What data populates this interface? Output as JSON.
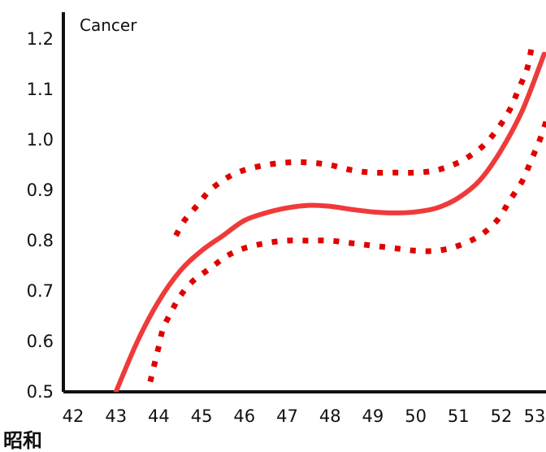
{
  "chart_data": {
    "type": "line",
    "title": "Cancer",
    "xlabel": "昭和",
    "ylabel": "",
    "xlim": [
      42,
      53
    ],
    "ylim": [
      0.5,
      1.25
    ],
    "x_ticks": [
      "42",
      "43",
      "44",
      "45",
      "46",
      "47",
      "48",
      "49",
      "50",
      "51",
      "52",
      "53"
    ],
    "y_ticks": [
      "0.5",
      "0.6",
      "0.7",
      "0.8",
      "0.9",
      "1.0",
      "1.1",
      "1.2"
    ],
    "grid": false,
    "colors": {
      "line": "#ef3a3a",
      "band": "#e00000",
      "axis": "#111111"
    },
    "series": [
      {
        "style": "solid",
        "x": [
          43.0,
          43.5,
          44.0,
          44.5,
          45.0,
          45.5,
          46.0,
          46.5,
          47.0,
          47.5,
          48.0,
          48.5,
          49.0,
          49.5,
          50.0,
          50.5,
          51.0,
          51.5,
          52.0,
          52.5,
          53.0
        ],
        "y": [
          0.5,
          0.6,
          0.68,
          0.74,
          0.78,
          0.81,
          0.84,
          0.855,
          0.865,
          0.87,
          0.868,
          0.862,
          0.857,
          0.855,
          0.857,
          0.865,
          0.885,
          0.92,
          0.98,
          1.06,
          1.17
        ]
      },
      {
        "style": "dotted",
        "x": [
          44.4,
          44.6,
          44.9,
          45.2,
          45.6,
          46.0,
          46.5,
          47.0,
          47.5,
          48.0,
          48.5,
          49.0,
          49.5,
          50.0,
          50.5,
          51.0,
          51.3,
          51.6,
          51.9,
          52.2,
          52.4,
          52.6,
          52.7
        ],
        "y": [
          0.81,
          0.84,
          0.87,
          0.9,
          0.925,
          0.94,
          0.95,
          0.955,
          0.955,
          0.95,
          0.94,
          0.935,
          0.935,
          0.935,
          0.94,
          0.955,
          0.97,
          0.99,
          1.02,
          1.06,
          1.1,
          1.14,
          1.18
        ]
      },
      {
        "style": "dotted",
        "x": [
          43.8,
          43.9,
          44.0,
          44.1,
          44.3,
          44.5,
          44.8,
          45.2,
          45.6,
          46.0,
          46.5,
          47.0,
          47.5,
          48.0,
          48.5,
          49.0,
          49.5,
          50.0,
          50.5,
          51.0,
          51.5,
          51.9,
          52.2,
          52.5,
          52.7,
          52.9,
          53.1
        ],
        "y": [
          0.52,
          0.555,
          0.59,
          0.625,
          0.66,
          0.69,
          0.72,
          0.745,
          0.77,
          0.785,
          0.795,
          0.8,
          0.8,
          0.8,
          0.795,
          0.79,
          0.785,
          0.78,
          0.78,
          0.79,
          0.81,
          0.84,
          0.88,
          0.92,
          0.96,
          1.0,
          1.05
        ]
      }
    ]
  }
}
